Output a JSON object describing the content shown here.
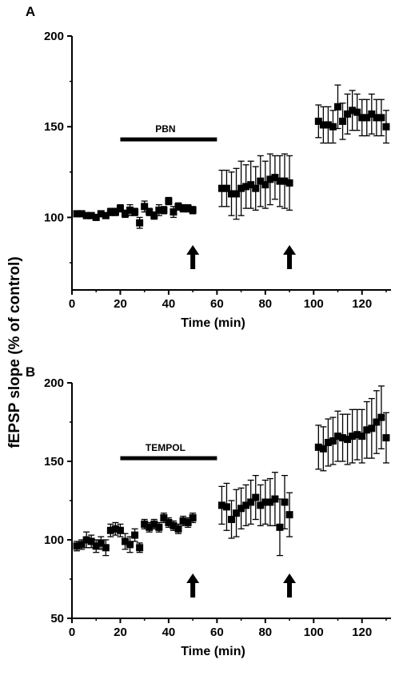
{
  "figure": {
    "ylabel": "fEPSP slope (% of control)"
  },
  "chart_data": [
    {
      "type": "scatter",
      "panel_label": "A",
      "xlabel": "Time (min)",
      "ylabel": "fEPSP slope (% of control)",
      "xlim": [
        0,
        132
      ],
      "ylim": [
        60,
        200
      ],
      "xticks": [
        0,
        20,
        40,
        60,
        80,
        100,
        120
      ],
      "yticks": [
        100,
        150,
        200
      ],
      "treatment_bar": {
        "label": "PBN",
        "x_start": 20,
        "x_end": 60,
        "y": 143
      },
      "arrows": [
        50,
        90
      ],
      "series": [
        {
          "x": [
            2,
            4,
            6,
            8,
            10,
            12,
            14,
            16,
            18,
            20,
            22,
            24,
            26,
            28,
            30,
            32,
            34,
            36,
            38,
            40,
            42,
            44,
            46,
            48,
            50
          ],
          "y": [
            102,
            102,
            101,
            101,
            100,
            102,
            101,
            103,
            103,
            105,
            102,
            104,
            103,
            97,
            106,
            103,
            101,
            104,
            104,
            109,
            103,
            106,
            105,
            105,
            104
          ],
          "err": [
            1,
            1,
            1,
            1,
            1,
            1,
            1,
            2,
            2,
            2,
            2,
            3,
            2,
            3,
            3,
            2,
            2,
            3,
            2,
            2,
            3,
            2,
            2,
            2,
            2
          ]
        },
        {
          "x": [
            62,
            64,
            66,
            68,
            70,
            72,
            74,
            76,
            78,
            80,
            82,
            84,
            86,
            88,
            90
          ],
          "y": [
            116,
            116,
            113,
            113,
            116,
            117,
            118,
            116,
            120,
            118,
            121,
            122,
            120,
            120,
            119
          ],
          "err": [
            10,
            10,
            12,
            14,
            15,
            12,
            13,
            12,
            14,
            13,
            14,
            12,
            14,
            15,
            15
          ]
        },
        {
          "x": [
            102,
            104,
            106,
            108,
            110,
            112,
            114,
            116,
            118,
            120,
            122,
            124,
            126,
            128,
            130
          ],
          "y": [
            153,
            151,
            151,
            150,
            161,
            153,
            157,
            159,
            158,
            155,
            155,
            157,
            155,
            155,
            150
          ],
          "err": [
            9,
            10,
            10,
            9,
            12,
            10,
            11,
            11,
            10,
            10,
            10,
            11,
            10,
            10,
            9
          ]
        }
      ]
    },
    {
      "type": "scatter",
      "panel_label": "B",
      "xlabel": "Time (min)",
      "ylabel": "fEPSP slope (% of control)",
      "xlim": [
        0,
        132
      ],
      "ylim": [
        50,
        200
      ],
      "xticks": [
        0,
        20,
        40,
        60,
        80,
        100,
        120
      ],
      "yticks": [
        50,
        100,
        150,
        200
      ],
      "treatment_bar": {
        "label": "TEMPOL",
        "x_start": 20,
        "x_end": 60,
        "y": 152
      },
      "arrows": [
        50,
        90
      ],
      "series": [
        {
          "x": [
            2,
            4,
            6,
            8,
            10,
            12,
            14,
            16,
            18,
            20,
            22,
            24,
            26,
            28,
            30,
            32,
            34,
            36,
            38,
            40,
            42,
            44,
            46,
            48,
            50
          ],
          "y": [
            96,
            97,
            100,
            99,
            96,
            98,
            95,
            106,
            107,
            106,
            99,
            97,
            103,
            95,
            110,
            108,
            110,
            108,
            114,
            111,
            109,
            107,
            112,
            111,
            114
          ],
          "err": [
            3,
            3,
            5,
            4,
            4,
            4,
            5,
            4,
            4,
            4,
            5,
            5,
            4,
            3,
            3,
            3,
            3,
            3,
            3,
            3,
            3,
            3,
            3,
            3,
            3
          ]
        },
        {
          "x": [
            62,
            64,
            66,
            68,
            70,
            72,
            74,
            76,
            78,
            80,
            82,
            84,
            86,
            88,
            90
          ],
          "y": [
            122,
            121,
            113,
            117,
            120,
            122,
            124,
            127,
            122,
            124,
            124,
            126,
            108,
            124,
            116
          ],
          "err": [
            12,
            15,
            12,
            15,
            13,
            13,
            14,
            14,
            13,
            14,
            15,
            17,
            18,
            17,
            14
          ]
        },
        {
          "x": [
            102,
            104,
            106,
            108,
            110,
            112,
            114,
            116,
            118,
            120,
            122,
            124,
            126,
            128,
            130
          ],
          "y": [
            159,
            158,
            162,
            163,
            166,
            165,
            164,
            166,
            167,
            166,
            170,
            171,
            175,
            178,
            165
          ],
          "err": [
            14,
            14,
            15,
            15,
            16,
            15,
            16,
            17,
            16,
            17,
            18,
            19,
            20,
            20,
            16
          ]
        }
      ]
    }
  ]
}
